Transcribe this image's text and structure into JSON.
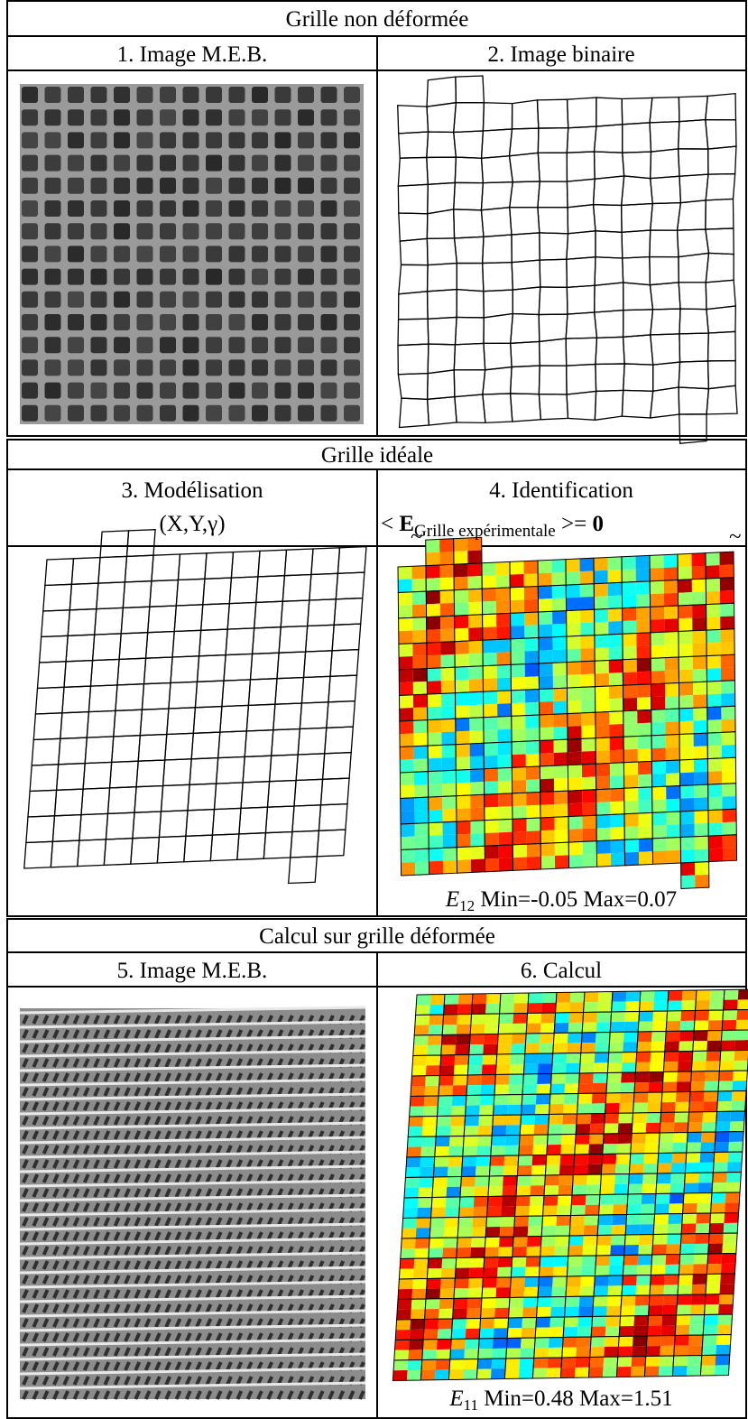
{
  "section1": {
    "title": "Grille non déformée",
    "left_header": "1. Image M.E.B.",
    "right_header": "2. Image binaire"
  },
  "section2": {
    "title": "Grille idéale",
    "left_header": [
      "3. Modélisation",
      "(X,Y,γ)"
    ],
    "right_header": "4. Identification",
    "formula": {
      "open": "<",
      "symbol": "E",
      "subscript": "Grille expérimentale",
      "close": ">=",
      "zero": "0"
    },
    "caption": {
      "symbol": "E",
      "subscript": "12",
      "text": "Min=-0.05 Max=0.07"
    }
  },
  "section3": {
    "title": "Calcul sur grille déformée",
    "left_header": "5. Image M.E.B.",
    "right_header": "6. Calcul",
    "caption": {
      "symbol": "E",
      "subscript": "11",
      "text": "Min=0.48 Max=1.51"
    }
  }
}
